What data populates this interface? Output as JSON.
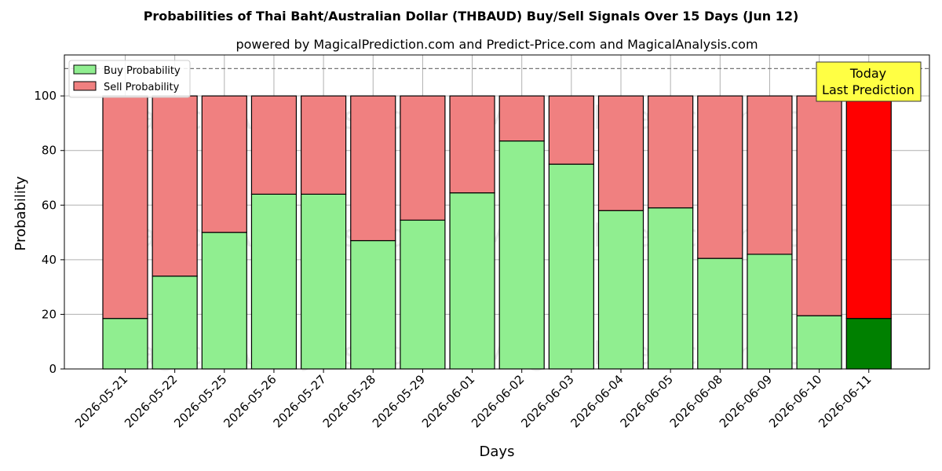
{
  "chart_data": {
    "type": "bar",
    "stacked": true,
    "title": "Probabilities of Thai Baht/Australian Dollar (THBAUD) Buy/Sell Signals Over 15 Days (Jun 12)",
    "subtitle": "powered by MagicalPrediction.com and Predict-Price.com and MagicalAnalysis.com",
    "xlabel": "Days",
    "ylabel": "Probability",
    "ylim": [
      0,
      115
    ],
    "yticks": [
      0,
      20,
      40,
      60,
      80,
      100
    ],
    "reference_line": 110,
    "grid": true,
    "legend_position": "top-left",
    "categories": [
      "2026-05-21",
      "2026-05-22",
      "2026-05-25",
      "2026-05-26",
      "2026-05-27",
      "2026-05-28",
      "2026-05-29",
      "2026-06-01",
      "2026-06-02",
      "2026-06-03",
      "2026-06-04",
      "2026-06-05",
      "2026-06-08",
      "2026-06-09",
      "2026-06-10",
      "2026-06-11"
    ],
    "series": [
      {
        "name": "Buy Probability",
        "color": "#90ee90",
        "values": [
          18.5,
          34,
          50,
          64,
          64,
          47,
          54.5,
          64.5,
          83.5,
          75,
          58,
          59,
          40.5,
          42,
          19.5,
          18.5
        ]
      },
      {
        "name": "Sell Probability",
        "color": "#f08080",
        "values": [
          81.5,
          66,
          50,
          36,
          36,
          53,
          45.5,
          35.5,
          16.5,
          25,
          42,
          41,
          59.5,
          58,
          80.5,
          81.5
        ]
      }
    ],
    "highlight": {
      "index": 15,
      "buy_color": "#008000",
      "sell_color": "#ff0000"
    },
    "annotation": {
      "line1": "Today",
      "line2": "Last Prediction",
      "color": "#ffff44"
    },
    "watermarks": [
      "MagicalAnalysis.com",
      "MagicalPrediction.com"
    ]
  }
}
